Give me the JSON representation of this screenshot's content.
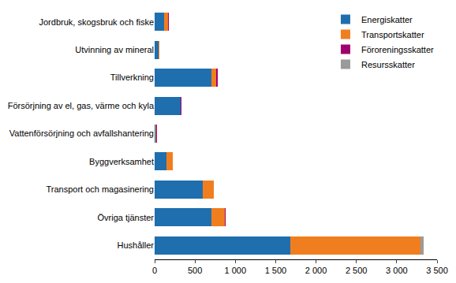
{
  "chart_data": {
    "type": "bar",
    "orientation": "horizontal",
    "stacked": true,
    "grid": false,
    "legend": "top right",
    "categories": [
      "Jordbruk, skogsbruk och fiske",
      "Utvinning av mineral",
      "Tillverkning",
      "Försörjning av el, gas, värme och kyla",
      "Vattenförsörjning och avfallshantering",
      "Byggverksamhet",
      "Transport och magasinering",
      "Övriga tjänster",
      "Hushåller"
    ],
    "series": [
      {
        "name": "Energiskatter",
        "color": "#1f6fae",
        "values": [
          120,
          50,
          700,
          320,
          10,
          150,
          600,
          700,
          1680
        ]
      },
      {
        "name": "Transportskatter",
        "color": "#f07e1f",
        "values": [
          50,
          5,
          60,
          5,
          5,
          70,
          130,
          170,
          1610
        ]
      },
      {
        "name": "Föroreningsskatter",
        "color": "#a0006e",
        "values": [
          5,
          2,
          20,
          5,
          15,
          2,
          5,
          5,
          0
        ]
      },
      {
        "name": "Resursskatter",
        "color": "#9a9a9a",
        "values": [
          5,
          3,
          5,
          5,
          0,
          0,
          0,
          5,
          40
        ]
      }
    ],
    "xlim": [
      0,
      3500
    ],
    "xticks": [
      0,
      500,
      {
        "value": 1000,
        "label": "1 000"
      },
      {
        "value": 1500,
        "label": "1 500"
      },
      {
        "value": 2000,
        "label": "2 000"
      },
      {
        "value": 2500,
        "label": "2 500"
      },
      {
        "value": 3000,
        "label": "3 000"
      },
      {
        "value": 3500,
        "label": "3 500"
      }
    ]
  }
}
